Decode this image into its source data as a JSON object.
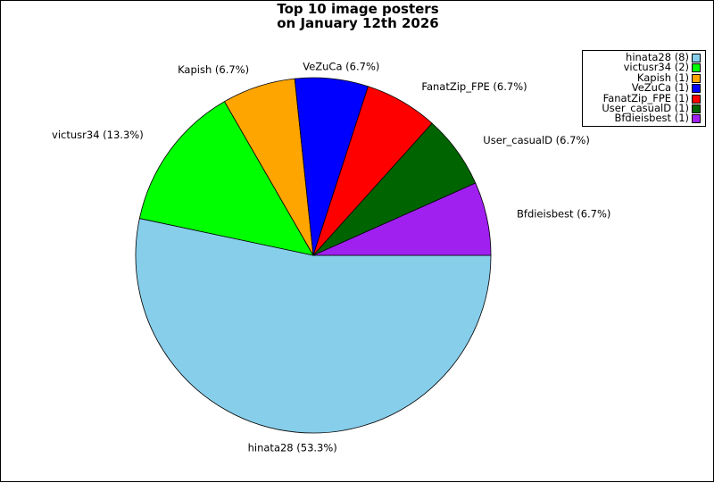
{
  "chart_data": {
    "type": "pie",
    "title_lines": [
      "Top 10 image posters",
      "on January 12th 2026"
    ],
    "slices": [
      {
        "name": "hinata28",
        "count": 8,
        "percent": 53.3,
        "label": "hinata28 (53.3%)",
        "legend": "hinata28 (8)",
        "color": "#87ceeb"
      },
      {
        "name": "victusr34",
        "count": 2,
        "percent": 13.3,
        "label": "victusr34 (13.3%)",
        "legend": "victusr34 (2)",
        "color": "#00ff00"
      },
      {
        "name": "Kapish",
        "count": 1,
        "percent": 6.7,
        "label": "Kapish (6.7%)",
        "legend": "Kapish (1)",
        "color": "#ffa500"
      },
      {
        "name": "VeZuCa",
        "count": 1,
        "percent": 6.7,
        "label": "VeZuCa (6.7%)",
        "legend": "VeZuCa (1)",
        "color": "#0000ff"
      },
      {
        "name": "FanatZip_FPE",
        "count": 1,
        "percent": 6.7,
        "label": "FanatZip_FPE (6.7%)",
        "legend": "FanatZip_FPE (1)",
        "color": "#ff0000"
      },
      {
        "name": "User_casualD",
        "count": 1,
        "percent": 6.7,
        "label": "User_casualD (6.7%)",
        "legend": "User_casualD (1)",
        "color": "#006400"
      },
      {
        "name": "Bfdieisbest",
        "count": 1,
        "percent": 6.7,
        "label": "Bfdieisbest (6.7%)",
        "legend": "Bfdieisbest (1)",
        "color": "#a020f0"
      }
    ],
    "legend_position": "top-right",
    "start_angle": "3 o'clock",
    "direction": "clockwise"
  }
}
